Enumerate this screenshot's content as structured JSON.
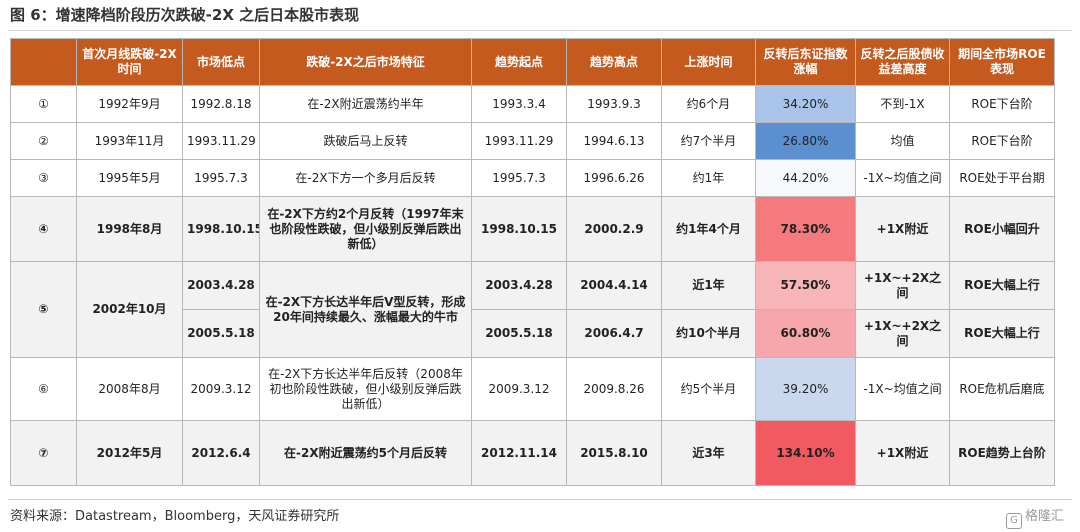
{
  "title": "图 6：增速降档阶段历次跌破-2X 之后日本股市表现",
  "source": "资料来源：Datastream，Bloomberg，天风证券研究所",
  "watermark": "格隆汇",
  "colors": {
    "header_bg": "#c55a1e",
    "header_text": "#ffffff"
  },
  "headers": [
    "",
    "首次月线跌破-2X时间",
    "市场低点",
    "跌破-2X之后市场特征",
    "趋势起点",
    "趋势高点",
    "上涨时间",
    "反转后东证指数涨幅",
    "反转之后股债收益差高度",
    "期间全市场ROE表现"
  ],
  "rows": [
    {
      "idx": "①",
      "first": "1992年9月",
      "low": "1992.8.18",
      "feature": "在-2X附近震荡约半年",
      "start": "1993.3.4",
      "peak": "1993.9.3",
      "duration": "约6个月",
      "gain": "34.20%",
      "gain_color": "#a9c4e8",
      "spread": "不到-1X",
      "roe": "ROE下台阶"
    },
    {
      "idx": "②",
      "first": "1993年11月",
      "low": "1993.11.29",
      "feature": "跌破后马上反转",
      "start": "1993.11.29",
      "peak": "1994.6.13",
      "duration": "约7个半月",
      "gain": "26.80%",
      "gain_color": "#5b8fd0",
      "spread": "均值",
      "roe": "ROE下台阶"
    },
    {
      "idx": "③",
      "first": "1995年5月",
      "low": "1995.7.3",
      "feature": "在-2X下方一个多月后反转",
      "start": "1995.7.3",
      "peak": "1996.6.26",
      "duration": "约1年",
      "gain": "44.20%",
      "gain_color": "#f6f8fb",
      "spread": "-1X~均值之间",
      "roe": "ROE处于平台期"
    },
    {
      "idx": "④",
      "first": "1998年8月",
      "low": "1998.10.15",
      "feature": "在-2X下方约2个月反转（1997年末也阶段性跌破，但小级别反弹后跌出新低）",
      "start": "1998.10.15",
      "peak": "2000.2.9",
      "duration": "约1年4个月",
      "gain": "78.30%",
      "gain_color": "#f47a7e",
      "spread": "+1X附近",
      "roe": "ROE小幅回升"
    },
    {
      "idx": "⑤",
      "first": "2002年10月",
      "feature": "在-2X下方长达半年后V型反转，形成20年间持续最久、涨幅最大的牛市",
      "sub": [
        {
          "low": "2003.4.28",
          "start": "2003.4.28",
          "peak": "2004.4.14",
          "duration": "近1年",
          "gain": "57.50%",
          "gain_color": "#f8b5b8",
          "spread": "+1X~+2X之间",
          "roe": "ROE大幅上行"
        },
        {
          "low": "2005.5.18",
          "start": "2005.5.18",
          "peak": "2006.4.7",
          "duration": "约10个半月",
          "gain": "60.80%",
          "gain_color": "#f7a7ab",
          "spread": "+1X~+2X之间",
          "roe": "ROE大幅上行"
        }
      ]
    },
    {
      "idx": "⑥",
      "first": "2008年8月",
      "low": "2009.3.12",
      "feature": "在-2X下方长达半年后反转（2008年初也阶段性跌破，但小级别反弹后跌出新低）",
      "start": "2009.3.12",
      "peak": "2009.8.26",
      "duration": "约5个半月",
      "gain": "39.20%",
      "gain_color": "#c9d8ee",
      "spread": "-1X~均值之间",
      "roe": "ROE危机后磨底"
    },
    {
      "idx": "⑦",
      "first": "2012年5月",
      "low": "2012.6.4",
      "feature": "在-2X附近震荡约5个月后反转",
      "start": "2012.11.14",
      "peak": "2015.8.10",
      "duration": "近3年",
      "gain": "134.10%",
      "gain_color": "#f15a60",
      "spread": "+1X附近",
      "roe": "ROE趋势上台阶"
    }
  ]
}
